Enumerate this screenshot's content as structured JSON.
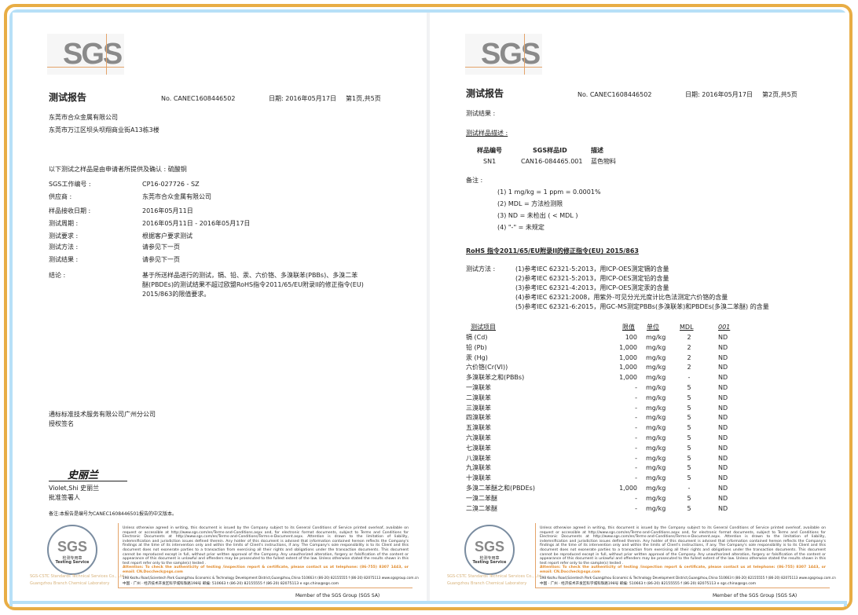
{
  "colors": {
    "frame_outer": "#e8ad45",
    "frame_inner": "#b7e0f7",
    "logo_grey": "#8a8a8a",
    "accent_line": "#e4a46a"
  },
  "logo_text": "SGS",
  "page1": {
    "title": "测试报告",
    "report_no": "No. CANEC1608446502",
    "date": "日期: 2016年05月17日",
    "page": "第1页,共5页",
    "client_name": "东莞市合众金属有限公司",
    "client_address": "东莞市万江区坝头坝翔商业街A13栋3楼",
    "intro": "以下测试之样品是由申请者所提供及确认 : 硫酸铜",
    "fields": [
      {
        "label": "SGS工作编号 :",
        "value": "CP16-027726 - SZ"
      },
      {
        "label": "供应商 :",
        "value": "东莞市合众金属有限公司"
      },
      {
        "label": "样品接收日期 :",
        "value": "2016年05月11日"
      },
      {
        "label": "测试周期 :",
        "value": "2016年05月11日 - 2016年05月17日"
      },
      {
        "label": "测试要求 :",
        "value": "根据客户要求测试"
      },
      {
        "label": "测试方法 :",
        "value": "请参见下一页"
      },
      {
        "label": "测试结果 :",
        "value": "请参见下一页"
      }
    ],
    "conclusion_label": "结论 :",
    "conclusion_lines": [
      "基于所送样品进行的测试，镉、铅、汞、六价铬、多溴联苯(PBBs)、多溴二苯",
      "醚(PBDEs)的测试结果不超过欧盟RoHS指令2011/65/EU附录II的修正指令(EU)",
      "2015/863的限值要求。"
    ],
    "company": "通标标准技术服务有限公司广州分公司",
    "authorized": "授权签名",
    "signature": "史丽兰",
    "signer": "Violet,Shi 史丽兰",
    "signer_role": "批准签署人",
    "note": "备注:本报告是编号为CANEC1608446501报告的中文版本。"
  },
  "page2": {
    "title": "测试报告",
    "report_no": "No. CANEC1608446502",
    "date": "日期: 2016年05月17日",
    "page": "第2页,共5页",
    "results_label": "测试结果 :",
    "sample_desc_label": "测试样品描述 :",
    "sample_table": {
      "headers": [
        "样品编号",
        "SGS样品ID",
        "描述"
      ],
      "row": [
        "SN1",
        "CAN16-084465.001",
        "蓝色物料"
      ]
    },
    "remarks_label": "备注 :",
    "remarks": [
      "(1) 1 mg/kg = 1 ppm = 0.0001%",
      "(2) MDL = 方法检测限",
      "(3) ND = 未检出 ( < MDL )",
      "(4) \"-\" = 未规定"
    ],
    "rohs_heading": "RoHS 指令2011/65/EU附录II的修正指令(EU) 2015/863",
    "method_label": "测试方法 :",
    "methods": [
      "(1)参考IEC 62321-5:2013，用ICP-OES测定镉的含量",
      "(2)参考IEC 62321-5:2013，用ICP-OES测定铅的含量",
      "(3)参考IEC 62321-4:2013，用ICP-OES测定汞的含量",
      "(4)参考IEC 62321:2008，用紫外-可见分光光度计比色法测定六价铬的含量",
      "(5)参考IEC 62321-6:2015，用GC-MS测定PBBs(多溴联苯)和PBDEs(多溴二苯醚) 的含量"
    ],
    "results_headers": [
      "测试项目",
      "限值",
      "单位",
      "MDL",
      "001"
    ],
    "results": [
      [
        "镉 (Cd)",
        "100",
        "mg/kg",
        "2",
        "ND"
      ],
      [
        "铅 (Pb)",
        "1,000",
        "mg/kg",
        "2",
        "ND"
      ],
      [
        "汞 (Hg)",
        "1,000",
        "mg/kg",
        "2",
        "ND"
      ],
      [
        "六价铬(Cr(VI))",
        "1,000",
        "mg/kg",
        "2",
        "ND"
      ],
      [
        "多溴联苯之和(PBBs)",
        "1,000",
        "mg/kg",
        "-",
        "ND"
      ],
      [
        "一溴联苯",
        "-",
        "mg/kg",
        "5",
        "ND"
      ],
      [
        "二溴联苯",
        "-",
        "mg/kg",
        "5",
        "ND"
      ],
      [
        "三溴联苯",
        "-",
        "mg/kg",
        "5",
        "ND"
      ],
      [
        "四溴联苯",
        "-",
        "mg/kg",
        "5",
        "ND"
      ],
      [
        "五溴联苯",
        "-",
        "mg/kg",
        "5",
        "ND"
      ],
      [
        "六溴联苯",
        "-",
        "mg/kg",
        "5",
        "ND"
      ],
      [
        "七溴联苯",
        "-",
        "mg/kg",
        "5",
        "ND"
      ],
      [
        "八溴联苯",
        "-",
        "mg/kg",
        "5",
        "ND"
      ],
      [
        "九溴联苯",
        "-",
        "mg/kg",
        "5",
        "ND"
      ],
      [
        "十溴联苯",
        "-",
        "mg/kg",
        "5",
        "ND"
      ],
      [
        "多溴二苯醚之和(PBDEs)",
        "1,000",
        "mg/kg",
        "-",
        "ND"
      ],
      [
        "一溴二苯醚",
        "-",
        "mg/kg",
        "5",
        "ND"
      ],
      [
        "二溴二苯醚",
        "-",
        "mg/kg",
        "5",
        "ND"
      ]
    ]
  },
  "footer": {
    "stamp_text": "SGS",
    "stamp_sub": "Testing Service",
    "stamp_seal_text": "检测专用章",
    "stamp_side": [
      "SGS-CSTC Standards Technical Services Co., Ltd.",
      "Guangzhou Branch Chemical Laboratory"
    ],
    "disclaimer": "Unless otherwise agreed in writing, this document is issued by the Company subject to its General Conditions of Service printed overleaf, available on request or accessible at http://www.sgs.com/en/Terms-and-Conditions.aspx and, for electronic format documents, subject to Terms and Conditions for Electronic Documents at http://www.sgs.com/en/Terms-and-Conditions/Terms-e-Document.aspx. Attention is drawn to the limitation of liability, indemnification and jurisdiction issues defined therein. Any holder of this document is advised that information contained hereon reflects the Company's findings at the time of its intervention only and within the limits of Client's instructions, if any. The Company's sole responsibility is to its Client and this document does not exonerate parties to a transaction from exercising all their rights and obligations under the transaction documents. This document cannot be reproduced except in full, without prior written approval of the Company. Any unauthorized alteration, forgery or falsification of the content or appearance of this document is unlawful and offenders may be prosecuted to the fullest extent of the law. Unless otherwise stated the results shown in this test report refer only to the sample(s) tested .",
    "attention": "Attention: To check the authenticity of testing /inspection report & certificate, please contact us at telephone: (86-755) 8307 1443, or email: CN.Doccheck@sgs.com",
    "address_en": "198 Kezhu Road,Scientech Park Guangzhou Economic & Technology Development District,Guangzhou,China  510663   t (86-20) 82155555   f (86-20) 82075113   www.sgsgroup.com.cn",
    "address_cn": "中国 · 广州 · 经济技术开发区科学城科珠路198号          邮编: 510663   t (86-20) 82155555   f (86-20) 82075113   e sgs.china@sgs.com",
    "member": "Member of the SGS Group (SGS SA)"
  }
}
